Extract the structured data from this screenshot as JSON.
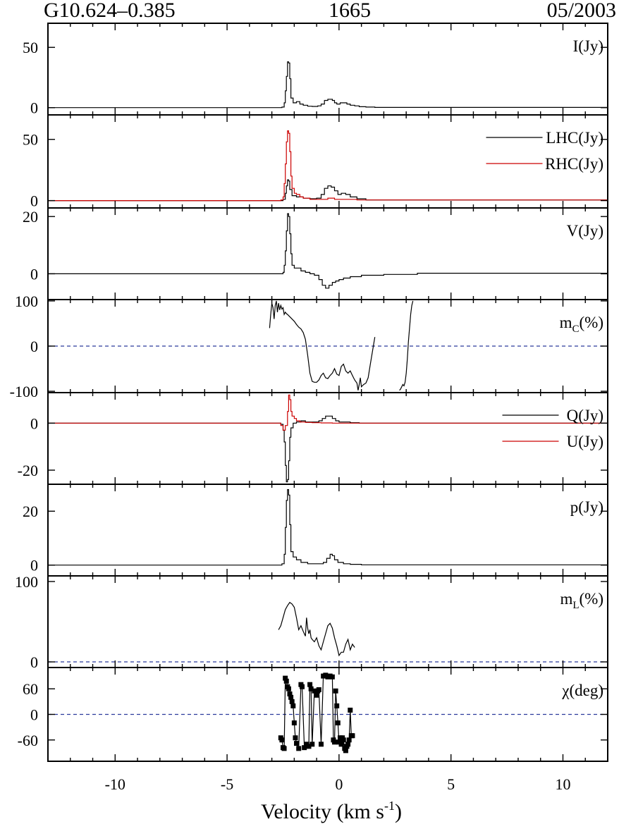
{
  "header": {
    "source": "G10.624–0.385",
    "frequency": "1665",
    "epoch": "05/2003"
  },
  "chart_data": {
    "type": "line",
    "title": "G10.624–0.385 1665 05/2003",
    "xlabel": "Velocity (km s",
    "xlabel_sup": "-1",
    "xlabel_close": ")",
    "xlim": [
      -13,
      12
    ],
    "xticks": [
      {
        "v": -10,
        "label": "-10"
      },
      {
        "v": -5,
        "label": "-5"
      },
      {
        "v": 0,
        "label": "0"
      },
      {
        "v": 5,
        "label": "5"
      },
      {
        "v": 10,
        "label": "10"
      }
    ],
    "colors": {
      "black": "#000000",
      "red": "#cc0000",
      "ref": "#2b3a9c"
    },
    "panels": [
      {
        "id": "I",
        "ylim": [
          -6,
          70
        ],
        "yticks": [
          {
            "v": 50,
            "label": "50"
          },
          {
            "v": 0,
            "label": "0"
          }
        ],
        "labels": [
          {
            "text": "I(Jy)"
          }
        ],
        "series": [
          {
            "name": "I",
            "color": "black",
            "step": true,
            "x": [
              -13,
              -2.55,
              -2.45,
              -2.4,
              -2.35,
              -2.3,
              -2.25,
              -2.2,
              -2.15,
              -2.05,
              -1.9,
              -1.75,
              -1.6,
              -1.4,
              -1.2,
              -0.95,
              -0.8,
              -0.65,
              -0.5,
              -0.4,
              -0.3,
              -0.2,
              -0.1,
              0.05,
              0.2,
              0.35,
              0.5,
              0.7,
              0.9,
              1.2,
              1.6,
              12
            ],
            "y": [
              0,
              0.5,
              4,
              14,
              26,
              38,
              37,
              24,
              8,
              4,
              5,
              3,
              2,
              1.2,
              1,
              1.5,
              3,
              6,
              7,
              7,
              6,
              4,
              3,
              4,
              4,
              3,
              2,
              1.5,
              0.8,
              0.5,
              0.2,
              0
            ]
          }
        ]
      },
      {
        "id": "LR",
        "ylim": [
          -6,
          70
        ],
        "yticks": [
          {
            "v": 50,
            "label": "50"
          },
          {
            "v": 0,
            "label": "0"
          }
        ],
        "labels": [
          {
            "text": "LHC(Jy)",
            "color": "black"
          },
          {
            "text": "RHC(Jy)",
            "color": "red"
          }
        ],
        "series": [
          {
            "name": "LHC",
            "color": "black",
            "step": true,
            "x": [
              -13,
              -2.5,
              -2.4,
              -2.35,
              -2.3,
              -2.25,
              -2.2,
              -2.1,
              -1.9,
              -1.6,
              -1.3,
              -1.0,
              -0.8,
              -0.65,
              -0.5,
              -0.35,
              -0.2,
              -0.05,
              0.1,
              0.3,
              0.5,
              0.8,
              1.2,
              12
            ],
            "y": [
              0,
              1,
              6,
              12,
              17,
              16,
              9,
              4,
              3,
              2,
              1.5,
              2,
              5,
              10,
              12,
              11,
              8,
              5,
              6,
              5,
              3,
              1.5,
              0.5,
              0
            ]
          },
          {
            "name": "RHC",
            "color": "red",
            "step": true,
            "x": [
              -13,
              -2.6,
              -2.5,
              -2.45,
              -2.4,
              -2.35,
              -2.3,
              -2.25,
              -2.2,
              -2.15,
              -2.1,
              -2.0,
              -1.9,
              -1.75,
              -1.6,
              -1.3,
              -0.9,
              -0.5,
              -0.2,
              0.2,
              0.8,
              12
            ],
            "y": [
              0,
              0.5,
              3,
              14,
              30,
              48,
              57,
              55,
              40,
              20,
              10,
              6,
              5,
              3,
              2,
              1,
              1,
              2,
              1,
              1,
              0.5,
              0
            ]
          }
        ]
      },
      {
        "id": "V",
        "ylim": [
          -9,
          23
        ],
        "yticks": [
          {
            "v": 20,
            "label": "20"
          },
          {
            "v": 0,
            "label": "0"
          }
        ],
        "labels": [
          {
            "text": "V(Jy)"
          }
        ],
        "series": [
          {
            "name": "V",
            "color": "black",
            "step": true,
            "x": [
              -13,
              -2.5,
              -2.45,
              -2.4,
              -2.35,
              -2.3,
              -2.25,
              -2.2,
              -2.15,
              -2.1,
              -2.0,
              -1.9,
              -1.7,
              -1.5,
              -1.3,
              -1.1,
              -0.9,
              -0.75,
              -0.6,
              -0.45,
              -0.3,
              -0.15,
              0,
              0.2,
              0.5,
              1.0,
              2.0,
              3.5,
              12
            ],
            "y": [
              0,
              0.5,
              3,
              8,
              15,
              21,
              20,
              14,
              7,
              3,
              2,
              2,
              1,
              0.5,
              0,
              -0.5,
              -2,
              -4,
              -5,
              -4,
              -3,
              -2.5,
              -2,
              -1.5,
              -1,
              -0.5,
              -0.2,
              0.2,
              0.2
            ]
          }
        ]
      },
      {
        "id": "mc",
        "ylim": [
          -103,
          103
        ],
        "yticks": [
          {
            "v": 100,
            "label": "100"
          },
          {
            "v": 0,
            "label": "0"
          },
          {
            "v": -100,
            "label": "-100"
          }
        ],
        "labels": [
          {
            "text": "m",
            "sub": "C",
            "after": "(%)"
          }
        ],
        "ref": 0,
        "series": [
          {
            "name": "mc_a",
            "color": "black",
            "step": false,
            "x": [
              -3.1,
              -3.05,
              -3.0,
              -2.95,
              -2.9,
              -2.85,
              -2.8,
              -2.75,
              -2.7,
              -2.65,
              -2.6,
              -2.55,
              -2.5,
              -2.45,
              -2.4,
              -2.35,
              -2.3,
              -2.2,
              -2.1,
              -2.0,
              -1.9,
              -1.8,
              -1.7,
              -1.6,
              -1.5,
              -1.4,
              -1.3,
              -1.2,
              -1.1,
              -1.0,
              -0.9,
              -0.8,
              -0.7,
              -0.6,
              -0.5,
              -0.4,
              -0.3,
              -0.2,
              -0.1,
              0.0,
              0.1,
              0.2,
              0.3,
              0.4,
              0.5,
              0.6,
              0.7,
              0.8,
              0.85,
              0.9,
              0.95,
              1.0,
              1.1,
              1.2,
              1.3,
              1.4,
              1.5,
              1.6
            ],
            "y": [
              40,
              70,
              95,
              85,
              60,
              90,
              100,
              75,
              95,
              80,
              90,
              82,
              85,
              70,
              75,
              72,
              70,
              65,
              60,
              55,
              48,
              42,
              38,
              30,
              15,
              -20,
              -60,
              -78,
              -80,
              -80,
              -75,
              -65,
              -60,
              -70,
              -72,
              -65,
              -60,
              -50,
              -62,
              -65,
              -45,
              -40,
              -55,
              -60,
              -55,
              -65,
              -75,
              -82,
              -98,
              -85,
              -70,
              -90,
              -85,
              -82,
              -70,
              -40,
              -10,
              20
            ]
          },
          {
            "name": "mc_b",
            "color": "black",
            "step": false,
            "x": [
              2.7,
              2.75,
              2.8,
              2.85,
              2.9,
              2.95,
              3.0,
              3.05,
              3.1,
              3.15,
              3.2,
              3.25,
              3.3
            ],
            "y": [
              -98,
              -95,
              -90,
              -85,
              -88,
              -80,
              -60,
              -30,
              10,
              40,
              70,
              90,
              100
            ]
          }
        ]
      },
      {
        "id": "QU",
        "ylim": [
          -26,
          13
        ],
        "yticks": [
          {
            "v": 0,
            "label": "0"
          },
          {
            "v": -20,
            "label": "-20"
          }
        ],
        "labels": [
          {
            "text": "Q(Jy)",
            "color": "black",
            "line": true
          },
          {
            "text": "U(Jy)",
            "color": "red",
            "line": true
          }
        ],
        "series": [
          {
            "name": "Q",
            "color": "black",
            "step": true,
            "x": [
              -13,
              -2.6,
              -2.5,
              -2.45,
              -2.4,
              -2.35,
              -2.3,
              -2.25,
              -2.2,
              -2.15,
              -2.05,
              -1.9,
              -1.7,
              -1.5,
              -1.3,
              -1.1,
              -0.9,
              -0.75,
              -0.6,
              -0.45,
              -0.3,
              -0.15,
              0,
              0.2,
              0.5,
              0.9,
              12
            ],
            "y": [
              0,
              -0.5,
              -3,
              -8,
              -18,
              -25,
              -24,
              -16,
              -6,
              -2,
              0,
              0.5,
              1,
              0.5,
              0.5,
              0.5,
              1,
              2,
              3,
              3,
              2,
              1,
              0.5,
              0.5,
              0.2,
              0,
              0
            ]
          },
          {
            "name": "U",
            "color": "red",
            "step": true,
            "x": [
              -13,
              -2.6,
              -2.5,
              -2.4,
              -2.3,
              -2.25,
              -2.2,
              -2.15,
              -2.1,
              -2.0,
              -1.9,
              -1.75,
              -1.5,
              -1.2,
              -0.8,
              -0.3,
              0.2,
              12
            ],
            "y": [
              0,
              -1,
              -3,
              -1,
              5,
              12,
              10,
              5,
              3,
              2,
              1,
              0.5,
              0.3,
              0.2,
              0.1,
              0,
              0,
              0
            ]
          }
        ]
      },
      {
        "id": "p",
        "ylim": [
          -4,
          30
        ],
        "yticks": [
          {
            "v": 20,
            "label": "20"
          },
          {
            "v": 0,
            "label": "0"
          }
        ],
        "labels": [
          {
            "text": "p(Jy)"
          }
        ],
        "series": [
          {
            "name": "p",
            "color": "black",
            "step": true,
            "x": [
              -13,
              -2.55,
              -2.45,
              -2.4,
              -2.35,
              -2.3,
              -2.25,
              -2.2,
              -2.15,
              -2.05,
              -1.9,
              -1.7,
              -1.4,
              -1.0,
              -0.7,
              -0.55,
              -0.4,
              -0.3,
              -0.2,
              -0.05,
              0.2,
              0.5,
              1.0,
              12
            ],
            "y": [
              0,
              0.5,
              4,
              14,
              24,
              28,
              26,
              15,
              5,
              3,
              2,
              1,
              0.5,
              0.5,
              1,
              2.5,
              4,
              3.5,
              2,
              1,
              0.5,
              0.3,
              0.1,
              0
            ]
          }
        ]
      },
      {
        "id": "mL",
        "ylim": [
          -7,
          107
        ],
        "yticks": [
          {
            "v": 100,
            "label": "100"
          },
          {
            "v": 0,
            "label": "0"
          }
        ],
        "labels": [
          {
            "text": "m",
            "sub": "L",
            "after": "(%)"
          }
        ],
        "ref": 0,
        "series": [
          {
            "name": "mL",
            "color": "black",
            "step": false,
            "x": [
              -2.7,
              -2.6,
              -2.5,
              -2.4,
              -2.3,
              -2.2,
              -2.1,
              -2.0,
              -1.9,
              -1.8,
              -1.7,
              -1.6,
              -1.5,
              -1.45,
              -1.4,
              -1.35,
              -1.3,
              -1.25,
              -1.2,
              -1.1,
              -1.0,
              -0.9,
              -0.8,
              -0.7,
              -0.6,
              -0.5,
              -0.4,
              -0.3,
              -0.2,
              -0.1,
              0.0,
              0.1,
              0.2,
              0.3,
              0.4,
              0.5,
              0.6,
              0.7
            ],
            "y": [
              40,
              45,
              55,
              65,
              70,
              74,
              72,
              68,
              55,
              40,
              45,
              38,
              32,
              55,
              42,
              35,
              40,
              30,
              28,
              25,
              30,
              20,
              15,
              25,
              35,
              45,
              48,
              42,
              30,
              20,
              8,
              12,
              12,
              22,
              28,
              15,
              22,
              18
            ]
          }
        ]
      },
      {
        "id": "chi",
        "ylim": [
          -110,
          110
        ],
        "yticks": [
          {
            "v": 60,
            "label": "60"
          },
          {
            "v": 0,
            "label": "0"
          },
          {
            "v": -60,
            "label": "-60"
          }
        ],
        "labels": [
          {
            "text": "χ(deg)"
          }
        ],
        "ref": 0,
        "series": [
          {
            "name": "chi",
            "color": "black",
            "step": false,
            "markers": true,
            "x": [
              -2.6,
              -2.55,
              -2.5,
              -2.45,
              -2.4,
              -2.35,
              -2.3,
              -2.25,
              -2.2,
              -2.15,
              -2.1,
              -2.05,
              -2.0,
              -1.95,
              -1.9,
              -1.8,
              -1.7,
              -1.65,
              -1.55,
              -1.45,
              -1.35,
              -1.3,
              -1.25,
              -1.2,
              -1.1,
              -1.0,
              -0.95,
              -0.9,
              -0.8,
              -0.7,
              -0.6,
              -0.5,
              -0.4,
              -0.3,
              -0.25,
              -0.2,
              -0.15,
              -0.1,
              -0.05,
              0.0,
              0.05,
              0.1,
              0.15,
              0.2,
              0.25,
              0.3,
              0.35,
              0.4,
              0.45,
              0.5,
              0.55,
              0.6
            ],
            "y": [
              -55,
              -60,
              -78,
              -80,
              85,
              78,
              65,
              60,
              48,
              40,
              30,
              20,
              -20,
              -55,
              -68,
              -80,
              70,
              65,
              -78,
              -70,
              -75,
              70,
              60,
              -70,
              55,
              45,
              55,
              58,
              -70,
              90,
              92,
              88,
              90,
              88,
              -60,
              -65,
              55,
              20,
              -20,
              -65,
              -55,
              -70,
              -55,
              -60,
              -80,
              -85,
              -75,
              -70,
              -60,
              10,
              -50,
              -50
            ]
          }
        ]
      }
    ]
  }
}
